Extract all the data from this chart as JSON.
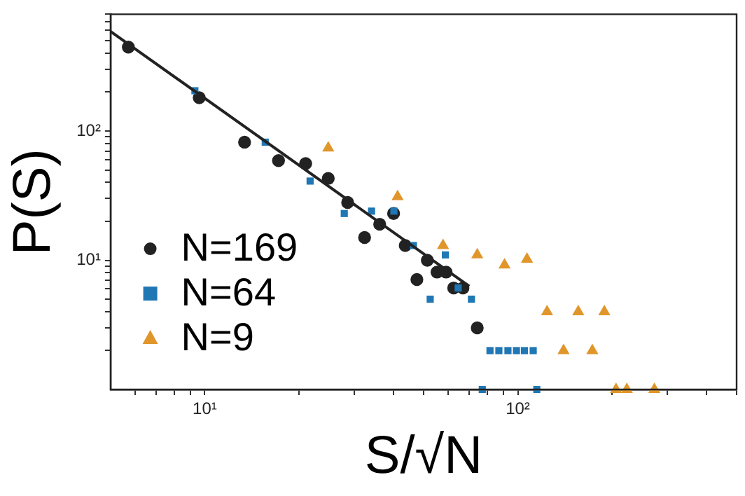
{
  "chart_data": {
    "type": "scatter",
    "xlabel": "S/√N",
    "ylabel": "P(S)",
    "log": "xy",
    "grid": false,
    "legend": "left",
    "xlim": [
      5,
      500
    ],
    "ylim": [
      1,
      800
    ],
    "xticks": [
      {
        "value": 6,
        "label": null
      },
      {
        "value": 7,
        "label": null
      },
      {
        "value": 8,
        "label": null
      },
      {
        "value": 9,
        "label": null
      },
      {
        "value": 10,
        "label": "10¹"
      },
      {
        "value": 20,
        "label": null
      },
      {
        "value": 30,
        "label": null
      },
      {
        "value": 40,
        "label": null
      },
      {
        "value": 50,
        "label": null
      },
      {
        "value": 60,
        "label": null
      },
      {
        "value": 70,
        "label": null
      },
      {
        "value": 80,
        "label": null
      },
      {
        "value": 90,
        "label": null
      },
      {
        "value": 100,
        "label": "10²"
      },
      {
        "value": 200,
        "label": null
      },
      {
        "value": 300,
        "label": null
      },
      {
        "value": 400,
        "label": null
      },
      {
        "value": 500,
        "label": null
      }
    ],
    "yticks": [
      {
        "value": 2,
        "label": null
      },
      {
        "value": 3,
        "label": null
      },
      {
        "value": 4,
        "label": null
      },
      {
        "value": 5,
        "label": null
      },
      {
        "value": 6,
        "label": null
      },
      {
        "value": 7,
        "label": null
      },
      {
        "value": 8,
        "label": null
      },
      {
        "value": 9,
        "label": null
      },
      {
        "value": 10,
        "label": "10¹"
      },
      {
        "value": 20,
        "label": null
      },
      {
        "value": 30,
        "label": null
      },
      {
        "value": 40,
        "label": null
      },
      {
        "value": 50,
        "label": null
      },
      {
        "value": 60,
        "label": null
      },
      {
        "value": 70,
        "label": null
      },
      {
        "value": 80,
        "label": null
      },
      {
        "value": 90,
        "label": null
      },
      {
        "value": 100,
        "label": "10²"
      },
      {
        "value": 200,
        "label": null
      },
      {
        "value": 300,
        "label": null
      },
      {
        "value": 400,
        "label": null
      },
      {
        "value": 500,
        "label": null
      },
      {
        "value": 600,
        "label": null
      },
      {
        "value": 700,
        "label": null
      },
      {
        "value": 800,
        "label": null
      }
    ],
    "series": [
      {
        "name": "N=169",
        "color": "#222222",
        "marker": "circle",
        "x": [
          5.7,
          9.6,
          13.4,
          17.2,
          21,
          24.8,
          28.6,
          32.4,
          36.2,
          40.1,
          43.7,
          47.6,
          51.4,
          55.2,
          59,
          62.4,
          66.8,
          74.2
        ],
        "values": [
          446,
          181,
          82,
          59,
          56,
          43,
          28,
          15,
          19,
          23,
          13,
          7.1,
          10,
          8.1,
          8.1,
          6.1,
          6.1,
          3
        ]
      },
      {
        "name": "N=64",
        "color": "#1f77b4",
        "marker": "square",
        "x": [
          9.3,
          15.6,
          21.7,
          27.9,
          34.1,
          40.2,
          46.4,
          52.5,
          58.7,
          64.5,
          71.1,
          77,
          81.5,
          87,
          93,
          99,
          105,
          112,
          115
        ],
        "values": [
          205,
          82,
          41,
          23,
          24,
          24,
          13,
          5,
          11,
          6.1,
          5,
          1,
          2,
          2,
          2,
          2,
          2,
          2,
          1
        ]
      },
      {
        "name": "N=9",
        "color": "#e0962a",
        "marker": "triangle",
        "x": [
          24.8,
          41.3,
          57.7,
          74.2,
          90.7,
          107,
          124,
          140,
          156,
          173,
          189,
          206,
          223,
          273
        ],
        "values": [
          74,
          31,
          13,
          11,
          9.2,
          10.2,
          4,
          2,
          4,
          2,
          4,
          1,
          1,
          1
        ]
      },
      {
        "type": "line",
        "color": "#222222",
        "marker": "none",
        "line_style": "solid",
        "x": [
          5,
          70
        ],
        "values": [
          590,
          6.3
        ]
      }
    ]
  }
}
